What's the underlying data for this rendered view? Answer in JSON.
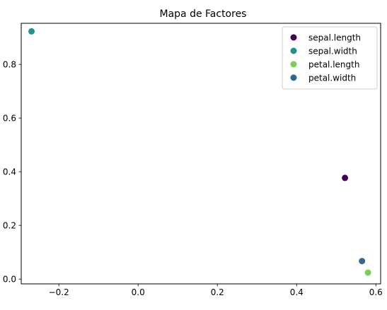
{
  "chart_data": {
    "type": "scatter",
    "title": "Mapa de Factores",
    "xlabel": "",
    "ylabel": "",
    "xlim": [
      -0.295,
      0.612
    ],
    "ylim": [
      -0.018,
      0.953
    ],
    "xticks": [
      -0.2,
      0.0,
      0.2,
      0.4,
      0.6
    ],
    "xtick_labels": [
      "−0.2",
      "0.0",
      "0.2",
      "0.4",
      "0.6"
    ],
    "yticks": [
      0.0,
      0.2,
      0.4,
      0.6,
      0.8
    ],
    "yticks_labels": [
      "0.0",
      "0.2",
      "0.4",
      "0.6",
      "0.8"
    ],
    "grid": false,
    "legend_position": "top-right",
    "series": [
      {
        "name": "sepal.length",
        "color": "#440154",
        "points": [
          [
            0.522,
            0.377
          ]
        ]
      },
      {
        "name": "sepal.width",
        "color": "#21918c",
        "points": [
          [
            -0.269,
            0.923
          ]
        ]
      },
      {
        "name": "petal.length",
        "color": "#7ad151",
        "points": [
          [
            0.58,
            0.024
          ]
        ]
      },
      {
        "name": "petal.width",
        "color": "#31688e",
        "points": [
          [
            0.565,
            0.067
          ]
        ]
      }
    ]
  }
}
